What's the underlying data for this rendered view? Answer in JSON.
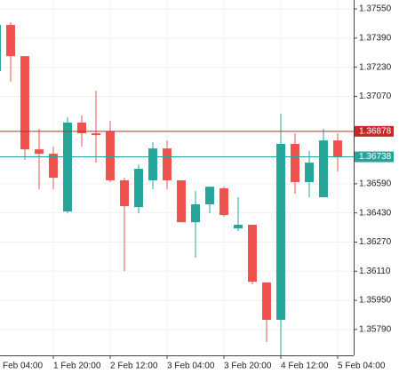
{
  "chart_data": {
    "type": "candlestick",
    "categories": [
      "Feb 04:00",
      null,
      null,
      null,
      "1 Feb 20:00",
      null,
      null,
      null,
      "2 Feb 12:00",
      null,
      null,
      null,
      "3 Feb 04:00",
      null,
      null,
      null,
      "3 Feb 20:00",
      null,
      null,
      null,
      "4 Feb 12:00",
      null,
      null,
      null,
      "5 Feb 04:00"
    ],
    "open": [
      1.37209,
      1.37462,
      1.37291,
      1.36779,
      1.36755,
      1.36438,
      1.36926,
      1.36867,
      1.36877,
      1.36609,
      1.36462,
      1.36609,
      1.36784,
      1.36609,
      1.36379,
      1.36477,
      1.36565,
      1.36345,
      1.36365,
      1.36048,
      1.35843,
      1.36809,
      1.36599,
      1.36516,
      1.36828
    ],
    "high": [
      1.375,
      1.37477,
      1.37291,
      1.36891,
      1.36794,
      1.36955,
      1.36965,
      1.37101,
      1.36935,
      1.36623,
      1.36696,
      1.36818,
      1.36828,
      1.36609,
      1.3655,
      1.36574,
      1.36574,
      1.36516,
      1.36365,
      1.36048,
      1.36974,
      1.36867,
      1.3677,
      1.36891,
      1.36867
    ],
    "low": [
      1.37209,
      1.3715,
      1.36721,
      1.3656,
      1.3656,
      1.36428,
      1.36794,
      1.36706,
      1.36599,
      1.36111,
      1.36428,
      1.3656,
      1.3656,
      1.36379,
      1.36184,
      1.36428,
      1.36409,
      1.3633,
      1.36038,
      1.35721,
      1.35648,
      1.36535,
      1.36516,
      1.36516,
      1.36657
    ],
    "close": [
      1.37462,
      1.37291,
      1.36779,
      1.36755,
      1.36623,
      1.36926,
      1.36867,
      1.36857,
      1.36609,
      1.36467,
      1.36672,
      1.36784,
      1.36609,
      1.36379,
      1.36477,
      1.36574,
      1.36418,
      1.36365,
      1.36052,
      1.35843,
      1.36809,
      1.36599,
      1.36706,
      1.36828,
      1.36735
    ],
    "up_color": "#26a69a",
    "down_color": "#ef5350",
    "ylim": [
      1.35648,
      1.37599
    ],
    "yticks": [
      {
        "value": 1.3755,
        "label": "1.37550"
      },
      {
        "value": 1.3739,
        "label": "1.37390"
      },
      {
        "value": 1.3723,
        "label": "1.37230"
      },
      {
        "value": 1.3707,
        "label": "1.37070"
      },
      {
        "value": 1.3659,
        "label": "1.36590"
      },
      {
        "value": 1.3643,
        "label": "1.36430"
      },
      {
        "value": 1.3627,
        "label": "1.36270"
      },
      {
        "value": 1.3611,
        "label": "1.36110"
      },
      {
        "value": 1.3595,
        "label": "1.35950"
      },
      {
        "value": 1.3579,
        "label": "1.35790"
      }
    ],
    "grid": true,
    "price_lines": [
      {
        "value": 1.36878,
        "color": "#c62828"
      },
      {
        "value": 1.36738,
        "color": "#26a69a"
      }
    ]
  }
}
